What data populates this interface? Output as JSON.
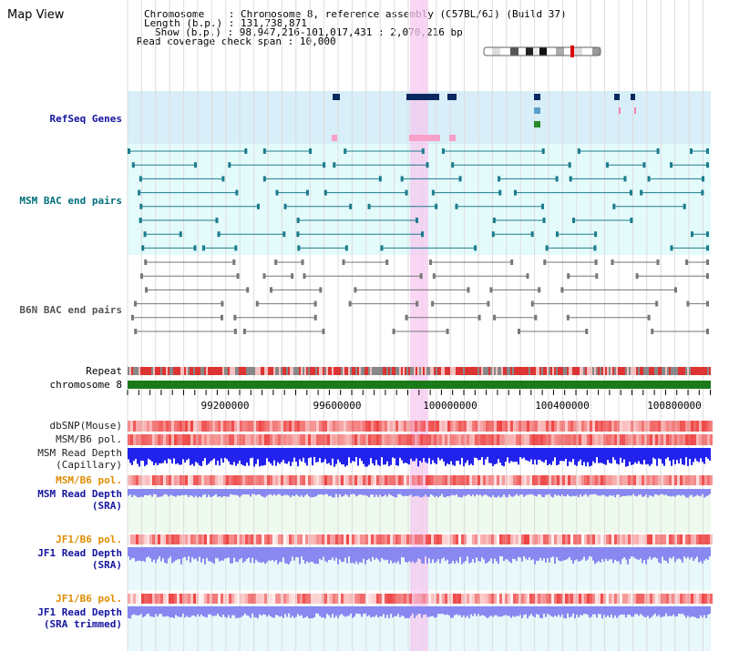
{
  "header": {
    "title": "Map View",
    "chromosome_label": "Chromosome",
    "chromosome_value": "Chromosome 8, reference assembly (C57BL/6J) (Build 37)",
    "length_label": "Length (b.p.)",
    "length_value": "131,738,871",
    "show_label": "Show (b.p.)",
    "show_value": "98,947,216-101,017,431 : 2,070,216 bp",
    "coverage_label": "Read coverage check span",
    "coverage_value": "10,000"
  },
  "tracks": {
    "refseq": "RefSeq Genes",
    "msm_bac": "MSM BAC end pairs",
    "b6n_bac": "B6N BAC end pairs",
    "repeat": "Repeat",
    "chromosome": "chromosome 8",
    "dbsnp": "dbSNP(Mouse)",
    "msm_b6_pol_1": "MSM/B6 pol.",
    "msm_read_depth_cap_1": "MSM Read Depth",
    "msm_read_depth_cap_2": "(Capillary)",
    "msm_b6_pol_2": "MSM/B6 pol.",
    "msm_read_depth_sra_1": "MSM Read Depth",
    "msm_read_depth_sra_2": "(SRA)",
    "jf1_b6_pol_1": "JF1/B6 pol.",
    "jf1_read_depth_sra_1": "JF1 Read Depth",
    "jf1_read_depth_sra_2": "(SRA)",
    "jf1_b6_pol_2": "JF1/B6 pol.",
    "jf1_read_depth_trim_1": "JF1 Read Depth",
    "jf1_read_depth_trim_2": "(SRA trimmed)"
  },
  "axis_ticks": [
    "99200000",
    "99600000",
    "100000000",
    "100400000",
    "100800000"
  ],
  "colors": {
    "refseq_bg": "#d8eef8",
    "bac_bg": "#e4fbfb",
    "highlight": "#f6c8f0",
    "chromosome_bar": "#1a7a1a",
    "snp": "#ee4444",
    "depth_capillary": "#2222ee",
    "depth_sra": "#8888f0",
    "label_blue": "#1414a0",
    "label_teal": "#006f7a",
    "label_gray": "#555555",
    "label_orange": "#e08c00"
  }
}
